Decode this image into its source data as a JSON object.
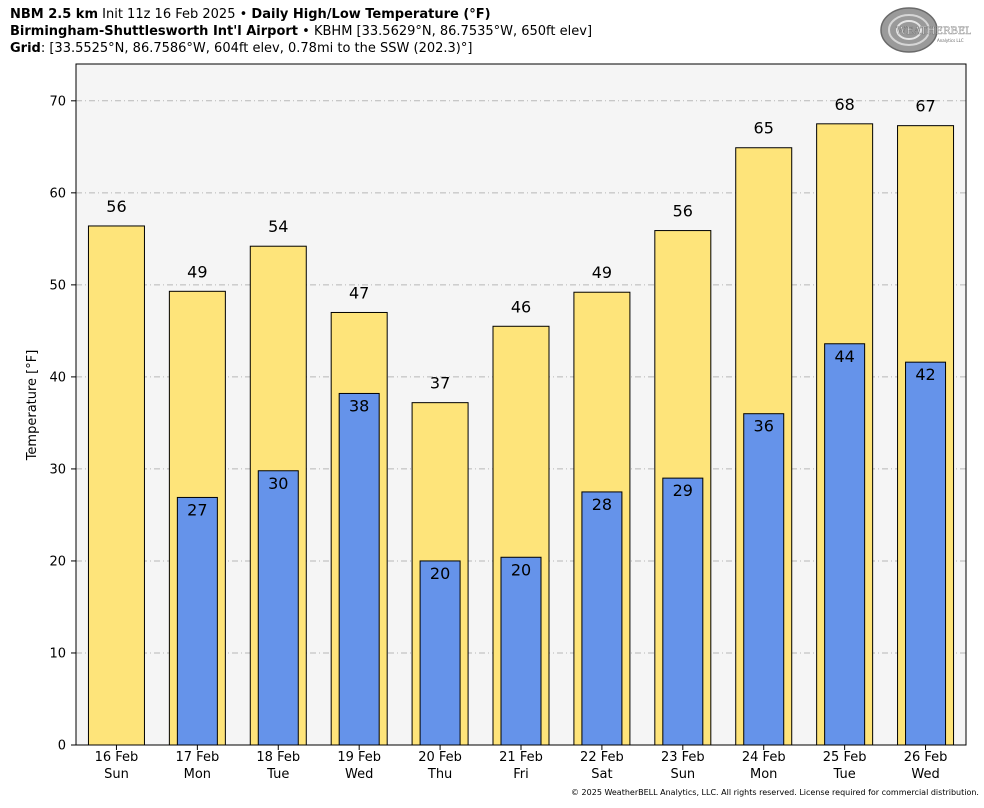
{
  "header": {
    "model": "NBM 2.5 km",
    "init": "Init 11z 16 Feb 2025",
    "separator": "•",
    "product": "Daily High/Low Temperature (°F)",
    "station_name": "Birmingham-Shuttlesworth Int'l Airport",
    "station_info": "KBHM [33.5629°N, 86.7535°W, 650ft elev]",
    "grid_label": "Grid",
    "grid_info": ": [33.5525°N, 86.7586°W, 604ft elev, 0.78mi to the SSW (202.3)°]"
  },
  "logo": {
    "text_main": "WEATHERBELL",
    "text_sub": "Analytics LLC"
  },
  "copyright": "© 2025 WeatherBELL Analytics, LLC. All rights reserved. License required for commercial distribution.",
  "colors": {
    "high_fill": "#fee47a",
    "low_fill": "#6593ea",
    "plot_bg": "#f5f5f5",
    "grid": "#b8b8b8"
  },
  "chart_data": {
    "type": "bar",
    "ylabel": "Temperature [°F]",
    "ylim": [
      0,
      74
    ],
    "yticks": [
      0,
      10,
      20,
      30,
      40,
      50,
      60,
      70
    ],
    "grid": true,
    "categories": [
      {
        "date": "16 Feb",
        "day": "Sun"
      },
      {
        "date": "17 Feb",
        "day": "Mon"
      },
      {
        "date": "18 Feb",
        "day": "Tue"
      },
      {
        "date": "19 Feb",
        "day": "Wed"
      },
      {
        "date": "20 Feb",
        "day": "Thu"
      },
      {
        "date": "21 Feb",
        "day": "Fri"
      },
      {
        "date": "22 Feb",
        "day": "Sat"
      },
      {
        "date": "23 Feb",
        "day": "Sun"
      },
      {
        "date": "24 Feb",
        "day": "Mon"
      },
      {
        "date": "25 Feb",
        "day": "Tue"
      },
      {
        "date": "26 Feb",
        "day": "Wed"
      }
    ],
    "series": [
      {
        "values": [
          56.4,
          49.3,
          54.2,
          47.0,
          37.2,
          45.5,
          49.2,
          55.9,
          64.9,
          67.5,
          67.3
        ],
        "labels": [
          "56",
          "49",
          "54",
          "47",
          "37",
          "46",
          "49",
          "56",
          "65",
          "68",
          "67"
        ]
      },
      {
        "values": [
          null,
          26.9,
          29.8,
          38.2,
          20.0,
          20.4,
          27.5,
          29.0,
          36.0,
          43.6,
          41.6
        ],
        "labels": [
          "",
          "27",
          "30",
          "38",
          "20",
          "20",
          "28",
          "29",
          "36",
          "44",
          "42"
        ]
      }
    ]
  }
}
